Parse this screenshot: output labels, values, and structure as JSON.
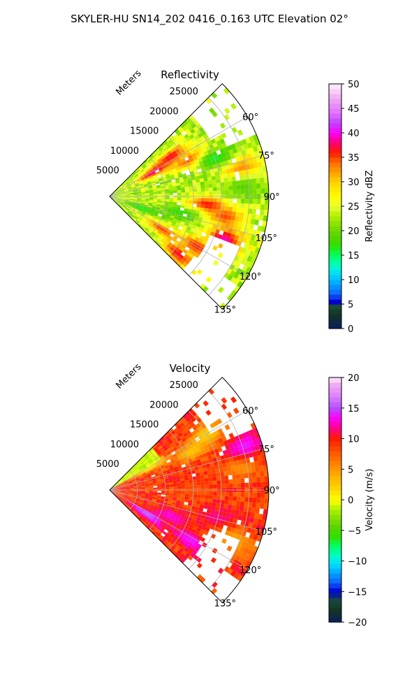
{
  "figure": {
    "title": "SKYLER-HU  SN14_202  0416_0.163 UTC Elevation 02°"
  },
  "chart_data": [
    {
      "type": "heatmap",
      "subtype": "polar-sector (PPI radar scan)",
      "title": "Reflectivity",
      "radial_label": "Meters",
      "radial_ticks": [
        5000,
        10000,
        15000,
        20000,
        25000
      ],
      "radial_tick_labels": [
        "5000",
        "10000",
        "15000",
        "20000",
        "25000"
      ],
      "radial_range": [
        0,
        28500
      ],
      "azimuth_range_deg": [
        45,
        135
      ],
      "azimuth_ticks": [
        60,
        75,
        90,
        105,
        120,
        135
      ],
      "azimuth_tick_labels": [
        "60°",
        "75°",
        "90°",
        "105°",
        "120°",
        "135°"
      ],
      "grid": true,
      "colorbar": {
        "label": "Reflectivity dBZ",
        "min": 0,
        "max": 50,
        "ticks": [
          0,
          5,
          10,
          15,
          20,
          25,
          30,
          35,
          40,
          45,
          50
        ],
        "tick_labels": [
          "0",
          "5",
          "10",
          "15",
          "20",
          "25",
          "30",
          "35",
          "40",
          "45",
          "50"
        ],
        "stops": [
          [
            0,
            "#0a1f5c"
          ],
          [
            3,
            "#123524"
          ],
          [
            4.5,
            "#1a4a3a"
          ],
          [
            5.5,
            "#0000cc"
          ],
          [
            7,
            "#1060ff"
          ],
          [
            9,
            "#00a0ff"
          ],
          [
            11,
            "#00d8ff"
          ],
          [
            13,
            "#00ffc0"
          ],
          [
            15,
            "#00ff60"
          ],
          [
            17,
            "#30e000"
          ],
          [
            19,
            "#58d400"
          ],
          [
            21,
            "#80e000"
          ],
          [
            23,
            "#b0f000"
          ],
          [
            25,
            "#e8ff30"
          ],
          [
            27,
            "#ffff00"
          ],
          [
            30,
            "#ffd200"
          ],
          [
            32,
            "#ffa000"
          ],
          [
            34,
            "#ff6a00"
          ],
          [
            36,
            "#ff1a00"
          ],
          [
            38,
            "#ff0070"
          ],
          [
            40,
            "#ff00ff"
          ],
          [
            42,
            "#c040ff"
          ],
          [
            44,
            "#e070ff"
          ],
          [
            47,
            "#f0a8f0"
          ],
          [
            50,
            "#fff0ff"
          ]
        ]
      },
      "background_value": 23,
      "features": [
        {
          "r": 9000,
          "az": 61,
          "value": 39
        },
        {
          "r": 13000,
          "az": 57,
          "value": 37
        },
        {
          "r": 16000,
          "az": 66,
          "value": 36
        },
        {
          "r": 17500,
          "az": 95,
          "value": 37
        },
        {
          "r": 22000,
          "az": 110,
          "value": 39
        },
        {
          "r": 24000,
          "az": 78,
          "value": 34
        },
        {
          "r": 11000,
          "az": 122,
          "value": 35
        },
        {
          "r": 16000,
          "az": 130,
          "value": 37
        },
        {
          "r": 18000,
          "az": 120,
          "value": 36
        },
        {
          "r": 21000,
          "az": 100,
          "value": 35
        },
        {
          "r": 13000,
          "az": 103,
          "value": 17
        },
        {
          "r": 20000,
          "az": 70,
          "value": 16
        },
        {
          "r": 6000,
          "az": 110,
          "value": 16
        },
        {
          "r": 24000,
          "az": 86,
          "value": 19
        }
      ],
      "gaps": [
        {
          "r_min": 19000,
          "r_max": 25000,
          "az_min": 112,
          "az_max": 126
        },
        {
          "r_min": 21000,
          "r_max": 28500,
          "az_min": 45,
          "az_max": 60
        },
        {
          "r_min": 18500,
          "r_max": 28500,
          "az_min": 126,
          "az_max": 135
        },
        {
          "r_min": 23000,
          "r_max": 28500,
          "az_min": 60,
          "az_max": 67
        }
      ]
    },
    {
      "type": "heatmap",
      "subtype": "polar-sector (PPI radar scan)",
      "title": "Velocity",
      "radial_label": "Meters",
      "radial_ticks": [
        5000,
        10000,
        15000,
        20000,
        25000
      ],
      "radial_tick_labels": [
        "5000",
        "10000",
        "15000",
        "20000",
        "25000"
      ],
      "radial_range": [
        0,
        28500
      ],
      "azimuth_range_deg": [
        45,
        135
      ],
      "azimuth_ticks": [
        60,
        75,
        90,
        105,
        120,
        135
      ],
      "azimuth_tick_labels": [
        "60°",
        "75°",
        "90°",
        "105°",
        "120°",
        "135°"
      ],
      "grid": true,
      "colorbar": {
        "label": "Velocity (m/s)",
        "min": -20,
        "max": 20,
        "ticks": [
          -20,
          -15,
          -10,
          -5,
          0,
          5,
          10,
          15,
          20
        ],
        "tick_labels": [
          "−20",
          "−15",
          "−10",
          "−5",
          "0",
          "5",
          "10",
          "15",
          "20"
        ],
        "stops": [
          [
            -20,
            "#0a1f5c"
          ],
          [
            -18,
            "#123524"
          ],
          [
            -16.5,
            "#1a4a3a"
          ],
          [
            -15,
            "#0000cc"
          ],
          [
            -13.5,
            "#1060ff"
          ],
          [
            -12,
            "#00a0ff"
          ],
          [
            -10.5,
            "#00e0ff"
          ],
          [
            -9,
            "#00ffc0"
          ],
          [
            -7.5,
            "#00ff60"
          ],
          [
            -6,
            "#30e000"
          ],
          [
            -4.5,
            "#58d400"
          ],
          [
            -3,
            "#80e000"
          ],
          [
            -1.5,
            "#b0f000"
          ],
          [
            0,
            "#ffff00"
          ],
          [
            2,
            "#ffd200"
          ],
          [
            4,
            "#ffb000"
          ],
          [
            6,
            "#ff8000"
          ],
          [
            8,
            "#ff5000"
          ],
          [
            10,
            "#ff1a00"
          ],
          [
            12,
            "#ff00a0"
          ],
          [
            13.5,
            "#ff00ff"
          ],
          [
            15,
            "#b050ff"
          ],
          [
            17,
            "#e080ff"
          ],
          [
            19,
            "#f0b0f0"
          ],
          [
            20,
            "#fff0ff"
          ]
        ]
      },
      "background_value": 9,
      "features": [
        {
          "r": 16000,
          "az": 65,
          "value": 3
        },
        {
          "r": 20000,
          "az": 60,
          "value": 2
        },
        {
          "r": 8000,
          "az": 60,
          "value": 0
        },
        {
          "r": 24000,
          "az": 80,
          "value": 5
        },
        {
          "r": 25500,
          "az": 72,
          "value": 14
        },
        {
          "r": 12000,
          "az": 113,
          "value": 13
        },
        {
          "r": 17000,
          "az": 122,
          "value": 14
        },
        {
          "r": 8000,
          "az": 123,
          "value": 16
        },
        {
          "r": 20000,
          "az": 105,
          "value": 12
        },
        {
          "r": 15000,
          "az": 90,
          "value": 8
        },
        {
          "r": 24000,
          "az": 112,
          "value": 4
        },
        {
          "r": 4000,
          "az": 52,
          "value": -2
        }
      ],
      "gaps": [
        {
          "r_min": 19000,
          "r_max": 25000,
          "az_min": 112,
          "az_max": 126
        },
        {
          "r_min": 21000,
          "r_max": 28500,
          "az_min": 45,
          "az_max": 60
        },
        {
          "r_min": 18500,
          "r_max": 28500,
          "az_min": 126,
          "az_max": 135
        },
        {
          "r_min": 23000,
          "r_max": 28500,
          "az_min": 60,
          "az_max": 67
        }
      ]
    }
  ]
}
